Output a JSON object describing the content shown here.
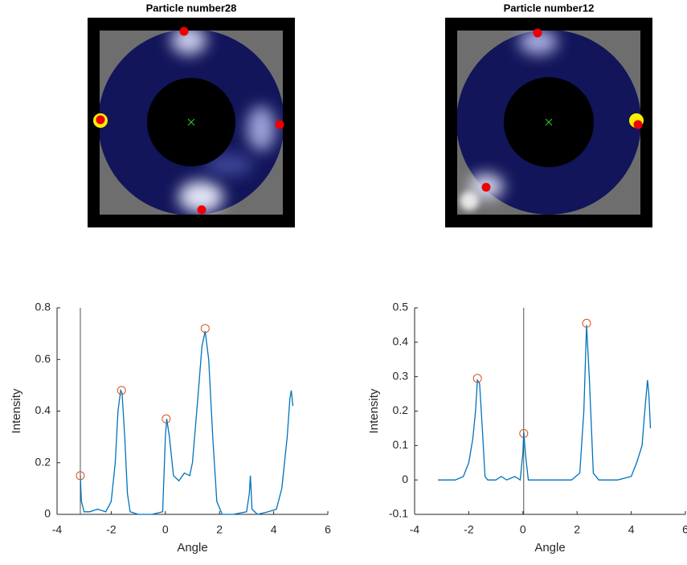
{
  "chart_data": [
    {
      "type": "image",
      "title": "Particle number28"
    },
    {
      "type": "image",
      "title": "Particle number12"
    },
    {
      "type": "line",
      "xlabel": "Angle",
      "ylabel": "Intensity",
      "xlim": [
        -4,
        6
      ],
      "xticks": [
        -4,
        -2,
        0,
        2,
        4,
        6
      ],
      "ylim": [
        0,
        0.8
      ],
      "yticks": [
        0,
        0.2,
        0.4,
        0.6,
        0.8
      ],
      "vline": -3.14,
      "series": [
        {
          "marker": "line",
          "color": "#0072bd",
          "x": [
            -3.14,
            -3.1,
            -3.0,
            -2.8,
            -2.5,
            -2.2,
            -2.0,
            -1.85,
            -1.75,
            -1.65,
            -1.6,
            -1.5,
            -1.4,
            -1.3,
            -1.0,
            -0.5,
            -0.1,
            0.0,
            0.05,
            0.15,
            0.3,
            0.5,
            0.7,
            0.9,
            1.0,
            1.2,
            1.35,
            1.47,
            1.6,
            1.75,
            1.9,
            2.1,
            2.5,
            3.0,
            3.1,
            3.14,
            3.2,
            3.4,
            3.8,
            4.1,
            4.3,
            4.5,
            4.6,
            4.65,
            4.71
          ],
          "values": [
            0.15,
            0.05,
            0.01,
            0.01,
            0.02,
            0.01,
            0.05,
            0.2,
            0.4,
            0.48,
            0.47,
            0.3,
            0.08,
            0.01,
            0.0,
            0.0,
            0.01,
            0.3,
            0.37,
            0.3,
            0.15,
            0.13,
            0.16,
            0.15,
            0.2,
            0.45,
            0.65,
            0.71,
            0.6,
            0.3,
            0.05,
            0.0,
            0.0,
            0.01,
            0.08,
            0.15,
            0.02,
            0.0,
            0.01,
            0.02,
            0.1,
            0.3,
            0.45,
            0.48,
            0.42
          ]
        },
        {
          "marker": "circle",
          "color": "#d95319",
          "x": [
            -3.14,
            -1.62,
            0.03,
            1.47
          ],
          "values": [
            0.15,
            0.48,
            0.37,
            0.72
          ]
        }
      ]
    },
    {
      "type": "line",
      "xlabel": "Angle",
      "ylabel": "Intensity",
      "xlim": [
        -4,
        6
      ],
      "xticks": [
        -4,
        -2,
        0,
        2,
        4,
        6
      ],
      "ylim": [
        -0.1,
        0.5
      ],
      "yticks": [
        -0.1,
        0,
        0.1,
        0.2,
        0.3,
        0.4,
        0.5
      ],
      "vline": 0.03,
      "series": [
        {
          "marker": "line",
          "color": "#0072bd",
          "x": [
            -3.14,
            -2.5,
            -2.2,
            -2.0,
            -1.85,
            -1.75,
            -1.68,
            -1.6,
            -1.5,
            -1.4,
            -1.3,
            -1.0,
            -0.8,
            -0.6,
            -0.3,
            -0.1,
            0.0,
            0.03,
            0.1,
            0.2,
            0.4,
            1.0,
            1.8,
            2.1,
            2.25,
            2.35,
            2.45,
            2.6,
            2.8,
            3.5,
            4.0,
            4.2,
            4.4,
            4.5,
            4.6,
            4.65,
            4.71
          ],
          "values": [
            0,
            0,
            0.01,
            0.05,
            0.12,
            0.2,
            0.29,
            0.28,
            0.15,
            0.01,
            0.0,
            0.0,
            0.01,
            0.0,
            0.01,
            0.0,
            0.08,
            0.14,
            0.07,
            0.0,
            0.0,
            0.0,
            0.0,
            0.02,
            0.2,
            0.45,
            0.3,
            0.02,
            0.0,
            0.0,
            0.01,
            0.05,
            0.1,
            0.2,
            0.29,
            0.25,
            0.15
          ]
        },
        {
          "marker": "circle",
          "color": "#d95319",
          "x": [
            -1.68,
            0.03,
            2.35
          ],
          "values": [
            0.295,
            0.135,
            0.455
          ]
        }
      ]
    }
  ]
}
